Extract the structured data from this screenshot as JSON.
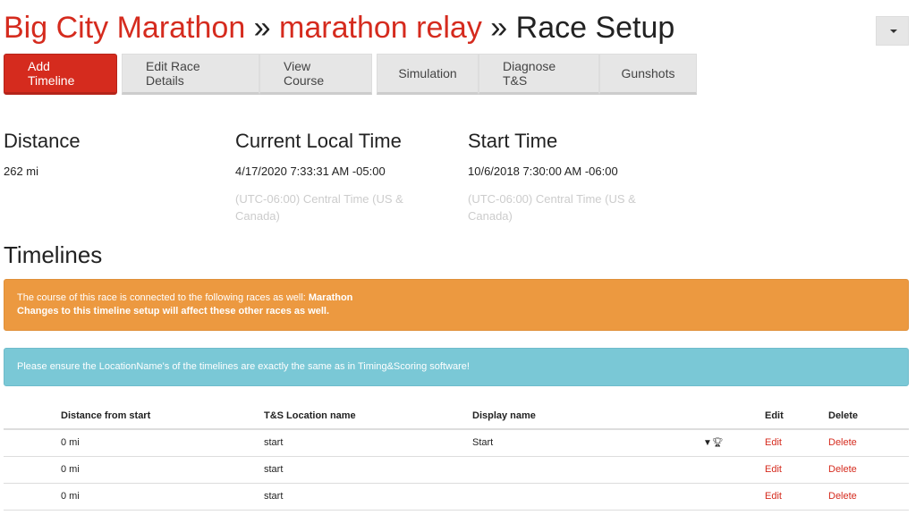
{
  "breadcrumb": {
    "event": "Big City Marathon",
    "sep1": " » ",
    "race": "marathon relay",
    "sep2": " » ",
    "page": "Race Setup"
  },
  "toolbar": {
    "add_timeline": "Add Timeline",
    "edit_race_details": "Edit Race Details",
    "view_course": "View Course",
    "simulation": "Simulation",
    "diagnose": "Diagnose T&S",
    "gunshots": "Gunshots"
  },
  "info": {
    "distance": {
      "label": "Distance",
      "value": "262 mi"
    },
    "local_time": {
      "label": "Current Local Time",
      "value": "4/17/2020 7:33:31 AM -05:00",
      "tz": "(UTC-06:00) Central Time (US & Canada)"
    },
    "start_time": {
      "label": "Start Time",
      "value": "10/6/2018 7:30:00 AM -06:00",
      "tz": "(UTC-06:00) Central Time (US & Canada)"
    }
  },
  "timelines": {
    "title": "Timelines",
    "warning": {
      "line1": "The course of this race is connected to the following races as well: ",
      "race": "Marathon",
      "line2": "Changes to this timeline setup will affect these other races as well."
    },
    "info": "Please ensure the LocationName's of the timelines are exactly the same as in Timing&Scoring software!",
    "columns": {
      "distance": "Distance from start",
      "location": "T&S Location name",
      "display": "Display name",
      "edit": "Edit",
      "delete": "Delete"
    },
    "rows": [
      {
        "distance": "0 mi",
        "location": "start",
        "display": "Start",
        "icons": [
          "filter-icon",
          "trophy-icon"
        ],
        "edit": "Edit",
        "delete": "Delete"
      },
      {
        "distance": "0 mi",
        "location": "start",
        "display": "",
        "edit": "Edit",
        "delete": "Delete"
      },
      {
        "distance": "0 mi",
        "location": "start",
        "display": "",
        "edit": "Edit",
        "delete": "Delete"
      }
    ]
  },
  "colors": {
    "brand": "#d52b1e",
    "warning": "#ec9940",
    "info": "#7ac8d6"
  }
}
